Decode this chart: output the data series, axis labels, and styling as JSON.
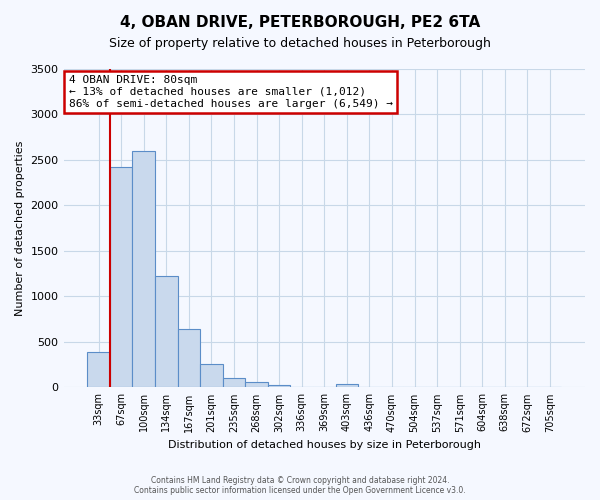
{
  "title": "4, OBAN DRIVE, PETERBOROUGH, PE2 6TA",
  "subtitle": "Size of property relative to detached houses in Peterborough",
  "xlabel": "Distribution of detached houses by size in Peterborough",
  "ylabel": "Number of detached properties",
  "bar_labels": [
    "33sqm",
    "67sqm",
    "100sqm",
    "134sqm",
    "167sqm",
    "201sqm",
    "235sqm",
    "268sqm",
    "302sqm",
    "336sqm",
    "369sqm",
    "403sqm",
    "436sqm",
    "470sqm",
    "504sqm",
    "537sqm",
    "571sqm",
    "604sqm",
    "638sqm",
    "672sqm",
    "705sqm"
  ],
  "bar_values": [
    390,
    2420,
    2600,
    1230,
    640,
    255,
    100,
    55,
    30,
    0,
    0,
    35,
    0,
    0,
    0,
    0,
    0,
    0,
    0,
    0,
    0
  ],
  "bar_color": "#c9d9ed",
  "bar_edge_color": "#5b8dc8",
  "vline_position": 1.0,
  "vline_color": "#cc0000",
  "ylim": [
    0,
    3500
  ],
  "yticks": [
    0,
    500,
    1000,
    1500,
    2000,
    2500,
    3000,
    3500
  ],
  "annotation_title": "4 OBAN DRIVE: 80sqm",
  "annotation_line1": "← 13% of detached houses are smaller (1,012)",
  "annotation_line2": "86% of semi-detached houses are larger (6,549) →",
  "annotation_box_edgecolor": "#cc0000",
  "annotation_box_facecolor": "#ffffff",
  "footer_line1": "Contains HM Land Registry data © Crown copyright and database right 2024.",
  "footer_line2": "Contains public sector information licensed under the Open Government Licence v3.0.",
  "fig_facecolor": "#f5f8ff",
  "plot_facecolor": "#f5f8ff",
  "grid_color": "#c8d8e8",
  "title_fontsize": 11,
  "subtitle_fontsize": 9,
  "ylabel_fontsize": 8,
  "xlabel_fontsize": 8,
  "tick_fontsize": 8,
  "xtick_fontsize": 7
}
